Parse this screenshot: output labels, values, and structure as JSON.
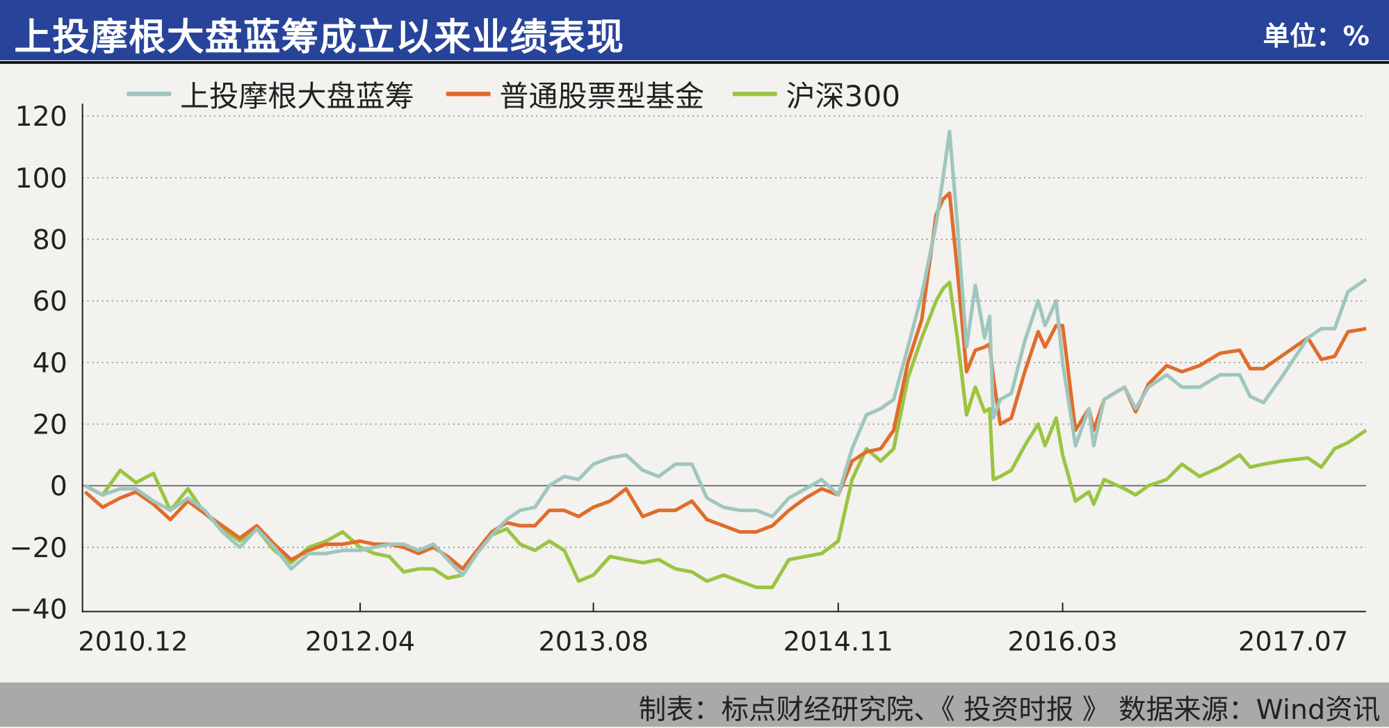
{
  "header": {
    "title": "上投摩根大盘蓝筹成立以来业绩表现",
    "unit": "单位：%"
  },
  "footer": {
    "source": "制表：标点财经研究院、《 投资时报 》  数据来源：Wind资讯"
  },
  "colors": {
    "header_bg": "#27449a",
    "blue_chip": "#9fc6bf",
    "equity_funds": "#e06c2c",
    "csi300": "#9bc443"
  },
  "chart_data": {
    "type": "line",
    "title": "上投摩根大盘蓝筹成立以来业绩表现",
    "ylabel": "单位：%",
    "ylim": [
      -40,
      120
    ],
    "yticks": [
      "120",
      "100",
      "80",
      "60",
      "40",
      "20",
      "0",
      "-20",
      "-40"
    ],
    "xticks": [
      "2010.12",
      "2012.04",
      "2013.08",
      "2014.11",
      "2016.03",
      "2017.07"
    ],
    "grid": "horizontal dotted",
    "legend": "top",
    "x": [
      "2010-12-01",
      "2011-01-01",
      "2011-02-01",
      "2011-03-01",
      "2011-04-01",
      "2011-05-01",
      "2011-06-01",
      "2011-07-01",
      "2011-08-01",
      "2011-09-01",
      "2011-10-01",
      "2011-11-01",
      "2011-12-01",
      "2012-01-01",
      "2012-02-01",
      "2012-03-01",
      "2012-04-01",
      "2012-05-01",
      "2012-06-01",
      "2012-07-01",
      "2012-08-01",
      "2012-09-01",
      "2012-10-01",
      "2012-11-01",
      "2012-12-01",
      "2013-01-01",
      "2013-02-01",
      "2013-03-01",
      "2013-04-01",
      "2013-05-01",
      "2013-06-01",
      "2013-07-01",
      "2013-08-01",
      "2013-09-01",
      "2013-10-01",
      "2013-11-01",
      "2013-12-01",
      "2014-01-01",
      "2014-02-01",
      "2014-03-01",
      "2014-04-01",
      "2014-05-01",
      "2014-06-01",
      "2014-07-01",
      "2014-08-01",
      "2014-09-01",
      "2014-10-01",
      "2014-11-01",
      "2014-12-01",
      "2015-01-01",
      "2015-02-01",
      "2015-03-01",
      "2015-04-01",
      "2015-05-01",
      "2015-06-01",
      "2015-06-16",
      "2015-06-30",
      "2015-07-17",
      "2015-08-06",
      "2015-08-25",
      "2015-09-14",
      "2015-09-25",
      "2015-10-03",
      "2015-10-18",
      "2015-11-11",
      "2015-12-10",
      "2016-01-08",
      "2016-01-23",
      "2016-02-16",
      "2016-03-01",
      "2016-03-28",
      "2016-04-25",
      "2016-05-05",
      "2016-05-27",
      "2016-07-09",
      "2016-08-01",
      "2016-08-28",
      "2016-10-05",
      "2016-11-06",
      "2016-12-13",
      "2017-01-25",
      "2017-03-07",
      "2017-03-29",
      "2017-04-26",
      "2017-06-02",
      "2017-07-28",
      "2017-08-25",
      "2017-09-22",
      "2017-10-20",
      "2017-11-27"
    ],
    "series": [
      {
        "name": "上投摩根大盘蓝筹",
        "color": "#9fc6bf",
        "values": [
          0,
          -3,
          -1,
          -1,
          -5,
          -8,
          -4,
          -8,
          -15,
          -20,
          -14,
          -20,
          -27,
          -22,
          -22,
          -21,
          -21,
          -20,
          -19,
          -19,
          -21,
          -19,
          -24,
          -29,
          -22,
          -16,
          -11,
          -8,
          -7,
          0,
          3,
          2,
          7,
          9,
          10,
          5,
          3,
          7,
          7,
          -4,
          -7,
          -8,
          -8,
          -10,
          -4,
          -1,
          2,
          -3,
          12,
          23,
          25,
          28,
          45,
          62,
          85,
          100,
          115,
          85,
          45,
          65,
          48,
          55,
          22,
          28,
          30,
          47,
          60,
          52,
          60,
          40,
          13,
          25,
          13,
          28,
          32,
          25,
          32,
          36,
          32,
          32,
          36,
          36,
          29,
          27,
          35,
          48,
          51,
          51,
          63,
          67
        ]
      },
      {
        "name": "普通股票型基金",
        "color": "#e06c2c",
        "values": [
          -2,
          -7,
          -4,
          -2,
          -6,
          -11,
          -5,
          -9,
          -13,
          -17,
          -13,
          -19,
          -24,
          -21,
          -19,
          -19,
          -18,
          -19,
          -19,
          -20,
          -22,
          -20,
          -23,
          -27,
          -21,
          -15,
          -12,
          -13,
          -13,
          -8,
          -8,
          -10,
          -7,
          -5,
          -1,
          -10,
          -8,
          -8,
          -5,
          -11,
          -13,
          -15,
          -15,
          -13,
          -8,
          -4,
          -1,
          -3,
          8,
          11,
          12,
          18,
          40,
          54,
          88,
          93,
          95,
          70,
          37,
          44,
          45,
          46,
          35,
          20,
          22,
          37,
          50,
          45,
          52,
          52,
          18,
          25,
          18,
          28,
          32,
          24,
          33,
          39,
          37,
          39,
          43,
          44,
          38,
          38,
          42,
          48,
          41,
          42,
          50,
          51
        ]
      },
      {
        "name": "沪深300",
        "color": "#9bc443",
        "values": [
          0,
          -3,
          5,
          1,
          4,
          -8,
          -1,
          -9,
          -14,
          -18,
          -14,
          -21,
          -25,
          -20,
          -18,
          -15,
          -20,
          -22,
          -23,
          -28,
          -27,
          -27,
          -30,
          -29,
          -22,
          -16,
          -14,
          -19,
          -21,
          -18,
          -21,
          -31,
          -29,
          -23,
          -24,
          -25,
          -24,
          -27,
          -28,
          -31,
          -29,
          -31,
          -33,
          -33,
          -24,
          -23,
          -22,
          -18,
          2,
          12,
          8,
          12,
          35,
          48,
          60,
          64,
          66,
          48,
          23,
          32,
          24,
          25,
          2,
          3,
          5,
          13,
          20,
          13,
          22,
          10,
          -5,
          -2,
          -6,
          2,
          -1,
          -3,
          0,
          2,
          7,
          3,
          6,
          10,
          6,
          7,
          8,
          9,
          6,
          12,
          14,
          18
        ]
      }
    ]
  }
}
